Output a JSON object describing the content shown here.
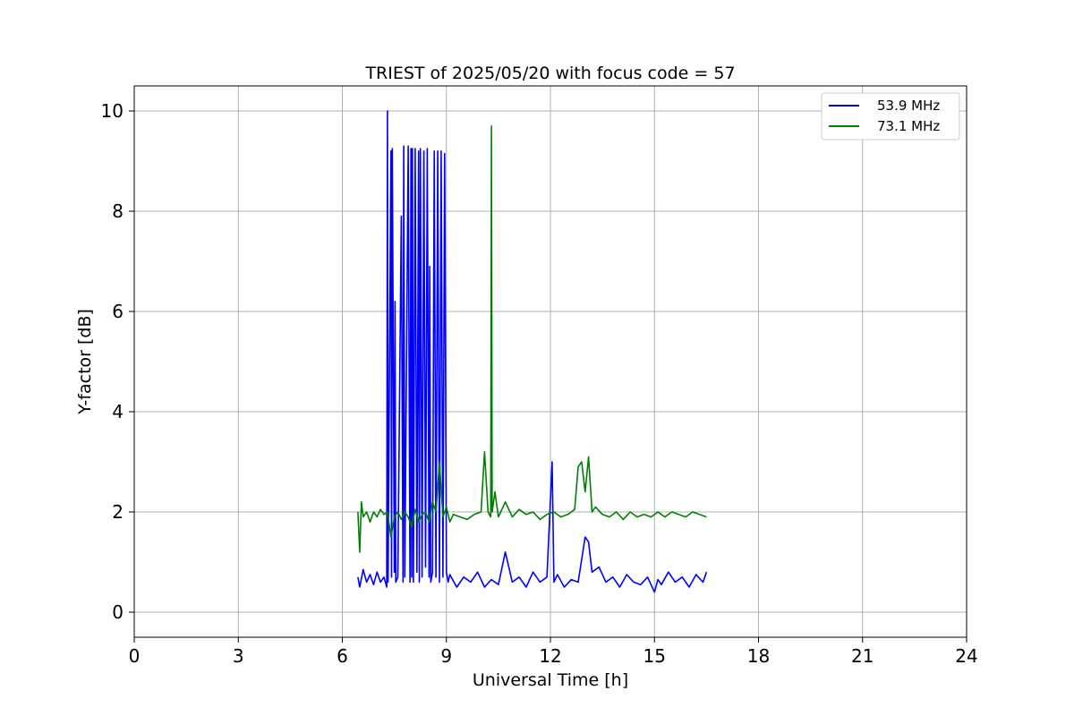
{
  "chart_data": {
    "type": "line",
    "title": "TRIEST of 2025/05/20 with focus code = 57",
    "xlabel": "Universal Time [h]",
    "ylabel": "Y-factor [dB]",
    "xlim": [
      0,
      24
    ],
    "ylim": [
      -0.5,
      10.5
    ],
    "xticks": [
      0,
      3,
      6,
      9,
      12,
      15,
      18,
      21,
      24
    ],
    "yticks": [
      0,
      2,
      4,
      6,
      8,
      10
    ],
    "grid": true,
    "legend_position": "top-right",
    "series": [
      {
        "name": "53.9 MHz",
        "color": "#0000ff",
        "x": [
          6.45,
          6.5,
          6.6,
          6.7,
          6.8,
          6.9,
          7.0,
          7.1,
          7.2,
          7.28,
          7.3,
          7.32,
          7.4,
          7.42,
          7.44,
          7.5,
          7.52,
          7.54,
          7.6,
          7.7,
          7.75,
          7.77,
          7.8,
          7.9,
          7.95,
          7.98,
          8.0,
          8.02,
          8.05,
          8.1,
          8.15,
          8.2,
          8.22,
          8.25,
          8.3,
          8.35,
          8.4,
          8.45,
          8.5,
          8.52,
          8.55,
          8.6,
          8.65,
          8.7,
          8.75,
          8.8,
          8.85,
          8.9,
          8.95,
          9.0,
          9.05,
          9.1,
          9.3,
          9.5,
          9.7,
          9.9,
          10.1,
          10.3,
          10.5,
          10.7,
          10.9,
          11.1,
          11.3,
          11.5,
          11.7,
          11.9,
          12.05,
          12.1,
          12.2,
          12.4,
          12.6,
          12.8,
          13.0,
          13.1,
          13.2,
          13.4,
          13.6,
          13.8,
          14.0,
          14.2,
          14.4,
          14.6,
          14.8,
          15.0,
          15.1,
          15.2,
          15.4,
          15.6,
          15.8,
          16.0,
          16.2,
          16.4,
          16.5
        ],
        "y": [
          0.7,
          0.5,
          0.85,
          0.6,
          0.75,
          0.55,
          0.8,
          0.6,
          0.7,
          0.5,
          10.0,
          0.6,
          9.2,
          0.7,
          9.25,
          0.8,
          6.2,
          0.6,
          0.7,
          7.9,
          0.6,
          9.3,
          0.7,
          9.3,
          0.6,
          9.25,
          0.7,
          9.25,
          0.6,
          9.25,
          0.8,
          9.2,
          0.6,
          9.25,
          0.7,
          9.2,
          0.9,
          9.25,
          0.7,
          6.9,
          0.6,
          0.8,
          9.2,
          0.7,
          9.2,
          0.6,
          9.2,
          0.7,
          9.15,
          0.8,
          0.6,
          0.75,
          0.5,
          0.7,
          0.6,
          0.8,
          0.5,
          0.65,
          0.55,
          1.2,
          0.6,
          0.7,
          0.5,
          0.8,
          0.6,
          0.7,
          3.0,
          0.6,
          0.75,
          0.5,
          0.65,
          0.6,
          1.5,
          1.4,
          0.8,
          0.9,
          0.6,
          0.7,
          0.5,
          0.75,
          0.6,
          0.55,
          0.7,
          0.4,
          0.65,
          0.55,
          0.8,
          0.6,
          0.7,
          0.5,
          0.75,
          0.6,
          0.8
        ]
      },
      {
        "name": "73.1 MHz",
        "color": "#008000",
        "x": [
          6.45,
          6.5,
          6.55,
          6.6,
          6.7,
          6.8,
          6.9,
          7.0,
          7.1,
          7.2,
          7.3,
          7.4,
          7.5,
          7.6,
          7.7,
          7.8,
          7.9,
          8.0,
          8.1,
          8.2,
          8.3,
          8.4,
          8.5,
          8.6,
          8.7,
          8.8,
          8.9,
          9.0,
          9.1,
          9.2,
          9.4,
          9.6,
          9.8,
          10.0,
          10.1,
          10.2,
          10.28,
          10.3,
          10.32,
          10.4,
          10.5,
          10.7,
          10.9,
          11.1,
          11.3,
          11.5,
          11.7,
          11.9,
          12.1,
          12.3,
          12.5,
          12.7,
          12.8,
          12.9,
          13.0,
          13.1,
          13.2,
          13.3,
          13.5,
          13.7,
          13.9,
          14.1,
          14.3,
          14.5,
          14.7,
          14.9,
          15.1,
          15.2,
          15.3,
          15.5,
          15.7,
          15.9,
          16.1,
          16.3,
          16.5
        ],
        "y": [
          2.0,
          1.2,
          2.2,
          1.9,
          2.0,
          1.8,
          2.0,
          1.9,
          2.05,
          1.95,
          2.0,
          1.5,
          1.9,
          2.0,
          1.85,
          2.0,
          1.9,
          1.7,
          2.05,
          1.8,
          1.95,
          2.0,
          1.8,
          2.2,
          2.0,
          3.0,
          1.9,
          2.1,
          1.8,
          1.95,
          1.9,
          1.85,
          1.95,
          2.0,
          3.2,
          2.0,
          1.9,
          9.7,
          2.0,
          2.4,
          1.9,
          2.2,
          1.9,
          2.05,
          1.95,
          2.0,
          1.85,
          1.95,
          2.0,
          1.9,
          1.95,
          2.05,
          2.9,
          3.0,
          2.4,
          3.1,
          2.0,
          2.1,
          1.95,
          1.9,
          2.0,
          1.85,
          2.0,
          1.9,
          1.95,
          1.9,
          2.0,
          1.95,
          1.9,
          2.0,
          1.95,
          1.9,
          2.0,
          1.95,
          1.9
        ]
      }
    ]
  }
}
